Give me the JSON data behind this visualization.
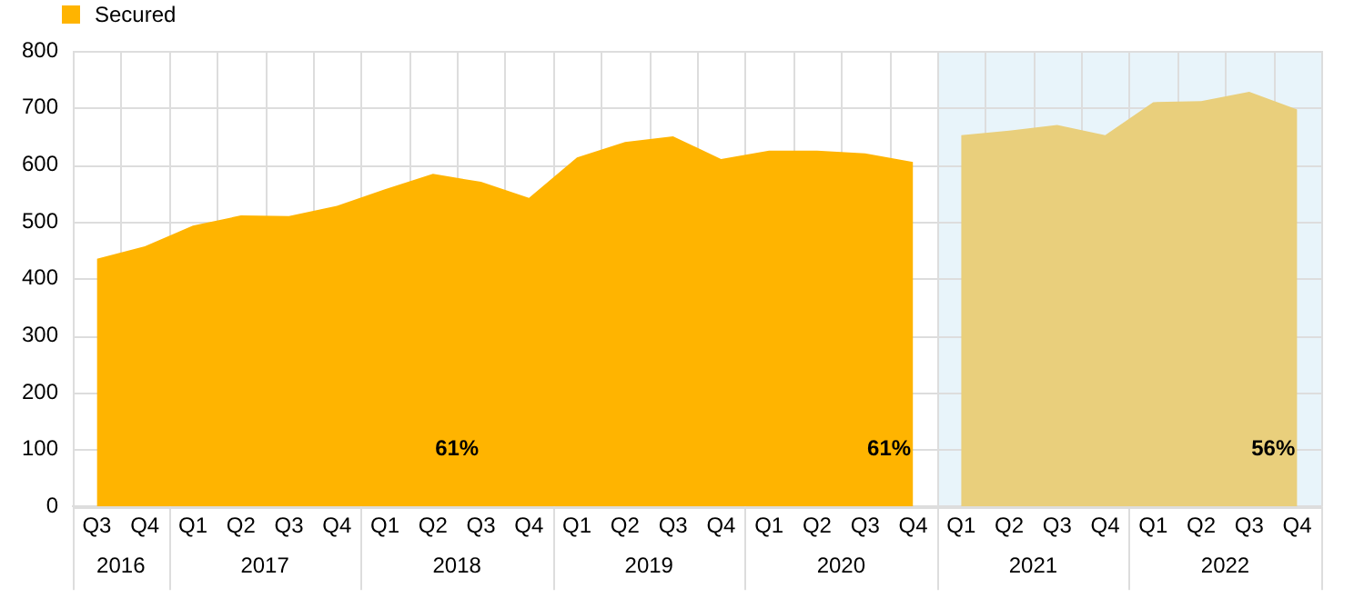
{
  "chart_data": {
    "type": "area",
    "categories": [
      "Q3",
      "Q4",
      "Q1",
      "Q2",
      "Q3",
      "Q4",
      "Q1",
      "Q2",
      "Q3",
      "Q4",
      "Q1",
      "Q2",
      "Q3",
      "Q4",
      "Q1",
      "Q2",
      "Q3",
      "Q4",
      "Q1",
      "Q2",
      "Q3",
      "Q4",
      "Q1",
      "Q2",
      "Q3",
      "Q4"
    ],
    "series": [
      {
        "name": "Secured",
        "color": "#ffb400",
        "values": [
          435,
          457,
          493,
          511,
          510,
          528,
          557,
          584,
          570,
          542,
          613,
          640,
          650,
          610,
          625,
          625,
          620,
          605,
          null,
          null,
          null,
          null,
          null,
          null,
          null,
          null
        ]
      },
      {
        "color": "#e9cf7c",
        "values": [
          null,
          null,
          null,
          null,
          null,
          null,
          null,
          null,
          null,
          null,
          null,
          null,
          null,
          null,
          null,
          null,
          null,
          null,
          652,
          660,
          670,
          652,
          710,
          712,
          728,
          697
        ]
      }
    ],
    "ylim": [
      0,
      800
    ],
    "yticks": [
      0,
      100,
      200,
      300,
      400,
      500,
      600,
      700,
      800
    ],
    "grid": true,
    "legend": "top left",
    "annotations": [
      "2016",
      "2017",
      "2018",
      "2019",
      "2020",
      "2021",
      "2022",
      "61%",
      "61%",
      "56%"
    ]
  }
}
